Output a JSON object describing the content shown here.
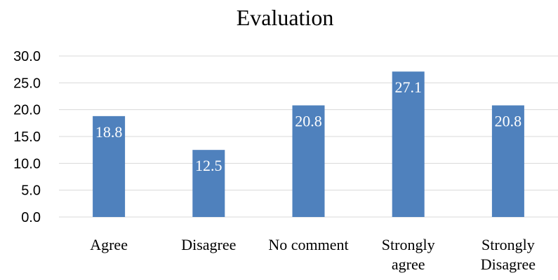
{
  "chart_data": {
    "type": "bar",
    "title": "Evaluation",
    "categories": [
      "Agree",
      "Disagree",
      "No comment",
      "Strongly agree",
      "Strongly Disagree"
    ],
    "category_lines": [
      [
        "Agree"
      ],
      [
        "Disagree"
      ],
      [
        "No comment"
      ],
      [
        "Strongly",
        "agree"
      ],
      [
        "Strongly",
        "Disagree"
      ]
    ],
    "values": [
      18.8,
      12.5,
      20.8,
      27.1,
      20.8
    ],
    "data_labels": [
      "18.8",
      "12.5",
      "20.8",
      "27.1",
      "20.8"
    ],
    "yticks": [
      "0.0",
      "5.0",
      "10.0",
      "15.0",
      "20.0",
      "25.0",
      "30.0"
    ],
    "ylim": [
      0,
      30
    ],
    "xlabel": "",
    "ylabel": "",
    "grid": true,
    "legend": "none",
    "colors": {
      "bar": "#4F81BD",
      "grid": "#D9D9D9"
    }
  }
}
